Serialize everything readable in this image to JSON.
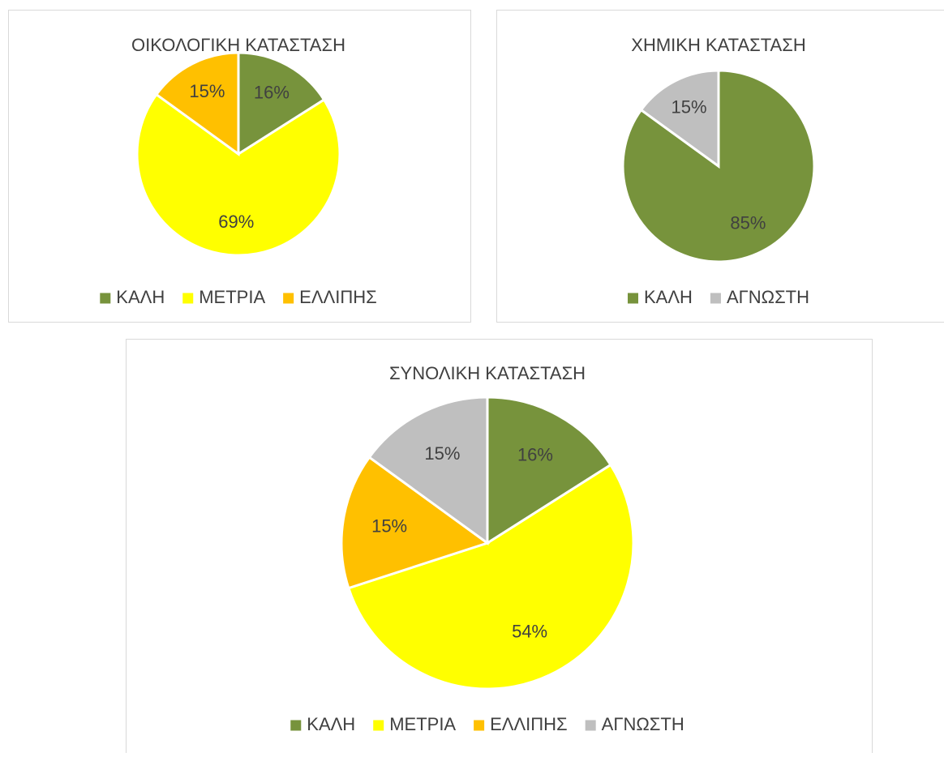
{
  "chart_data": [
    {
      "type": "pie",
      "title": "ΟΙΚΟΛΟΓΙΚΗ ΚΑΤΑΣΤΑΣΗ",
      "categories": [
        "ΚΑΛΗ",
        "ΜΕΤΡΙΑ",
        "ΕΛΛΙΠΗΣ"
      ],
      "values": [
        16,
        69,
        15
      ],
      "value_labels": [
        "16%",
        "69%",
        "15%"
      ],
      "colors": [
        "#77933c",
        "#ffff00",
        "#ffc000"
      ],
      "legend": "bottom"
    },
    {
      "type": "pie",
      "title": "ΧΗΜΙΚΗ ΚΑΤΑΣΤΑΣΗ",
      "categories": [
        "ΚΑΛΗ",
        "ΑΓΝΩΣΤΗ"
      ],
      "values": [
        85,
        15
      ],
      "value_labels": [
        "85%",
        "15%"
      ],
      "colors": [
        "#77933c",
        "#bfbfbf"
      ],
      "legend": "bottom"
    },
    {
      "type": "pie",
      "title": "ΣΥΝΟΛΙΚΗ ΚΑΤΑΣΤΑΣΗ",
      "categories": [
        "ΚΑΛΗ",
        "ΜΕΤΡΙΑ",
        "ΕΛΛΙΠΗΣ",
        "ΑΓΝΩΣΤΗ"
      ],
      "values": [
        16,
        54,
        15,
        15
      ],
      "value_labels": [
        "16%",
        "54%",
        "15%",
        "15%"
      ],
      "colors": [
        "#77933c",
        "#ffff00",
        "#ffc000",
        "#bfbfbf"
      ],
      "legend": "bottom"
    }
  ]
}
